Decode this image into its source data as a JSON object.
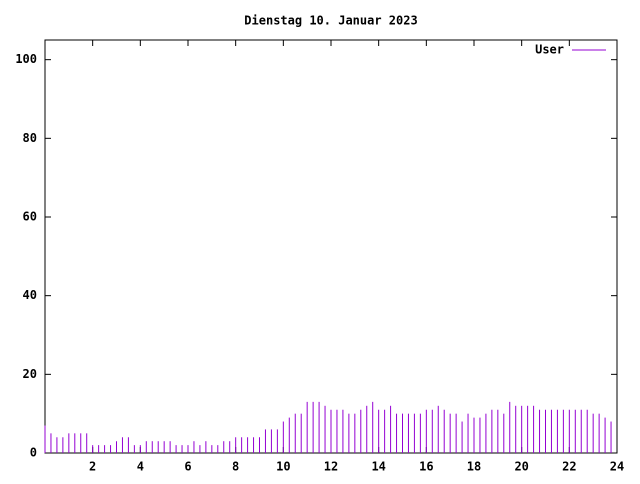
{
  "chart_data": {
    "type": "impulse",
    "title": "Dienstag 10. Januar 2023",
    "x": [
      0,
      0.25,
      0.5,
      0.75,
      1,
      1.25,
      1.5,
      1.75,
      2,
      2.25,
      2.5,
      2.75,
      3,
      3.25,
      3.5,
      3.75,
      4,
      4.25,
      4.5,
      4.75,
      5,
      5.25,
      5.5,
      5.75,
      6,
      6.25,
      6.5,
      6.75,
      7,
      7.25,
      7.5,
      7.75,
      8,
      8.25,
      8.5,
      8.75,
      9,
      9.25,
      9.5,
      9.75,
      10,
      10.25,
      10.5,
      10.75,
      11,
      11.25,
      11.5,
      11.75,
      12,
      12.25,
      12.5,
      12.75,
      13,
      13.25,
      13.5,
      13.75,
      14,
      14.25,
      14.5,
      14.75,
      15,
      15.25,
      15.5,
      15.75,
      16,
      16.25,
      16.5,
      16.75,
      17,
      17.25,
      17.5,
      17.75,
      18,
      18.25,
      18.5,
      18.75,
      19,
      19.25,
      19.5,
      19.75,
      20,
      20.25,
      20.5,
      20.75,
      21,
      21.25,
      21.5,
      21.75,
      22,
      22.25,
      22.5,
      22.75,
      23,
      23.25,
      23.5,
      23.75
    ],
    "series": [
      {
        "name": "User",
        "color": "#9400d3",
        "values": [
          7,
          5,
          4,
          4,
          5,
          5,
          5,
          5,
          2,
          2,
          2,
          2,
          3,
          4,
          4,
          2,
          2,
          3,
          3,
          3,
          3,
          3,
          2,
          2,
          2,
          3,
          2,
          3,
          2,
          2,
          3,
          3,
          4,
          4,
          4,
          4,
          4,
          6,
          6,
          6,
          8,
          9,
          10,
          10,
          13,
          13,
          13,
          12,
          11,
          11,
          11,
          10,
          10,
          11,
          12,
          13,
          11,
          11,
          12,
          10,
          10,
          10,
          10,
          10,
          11,
          11,
          12,
          11,
          10,
          10,
          8,
          10,
          9,
          9,
          10,
          11,
          11,
          10,
          13,
          12,
          12,
          12,
          12,
          11,
          11,
          11,
          11,
          11,
          11,
          11,
          11,
          11,
          10,
          10,
          9,
          8
        ]
      }
    ],
    "xlim": [
      0,
      24
    ],
    "xticks": [
      2,
      4,
      6,
      8,
      10,
      12,
      14,
      16,
      18,
      20,
      22,
      24
    ],
    "ylim": [
      0,
      105
    ],
    "yticks": [
      0,
      20,
      40,
      60,
      80,
      100
    ]
  }
}
